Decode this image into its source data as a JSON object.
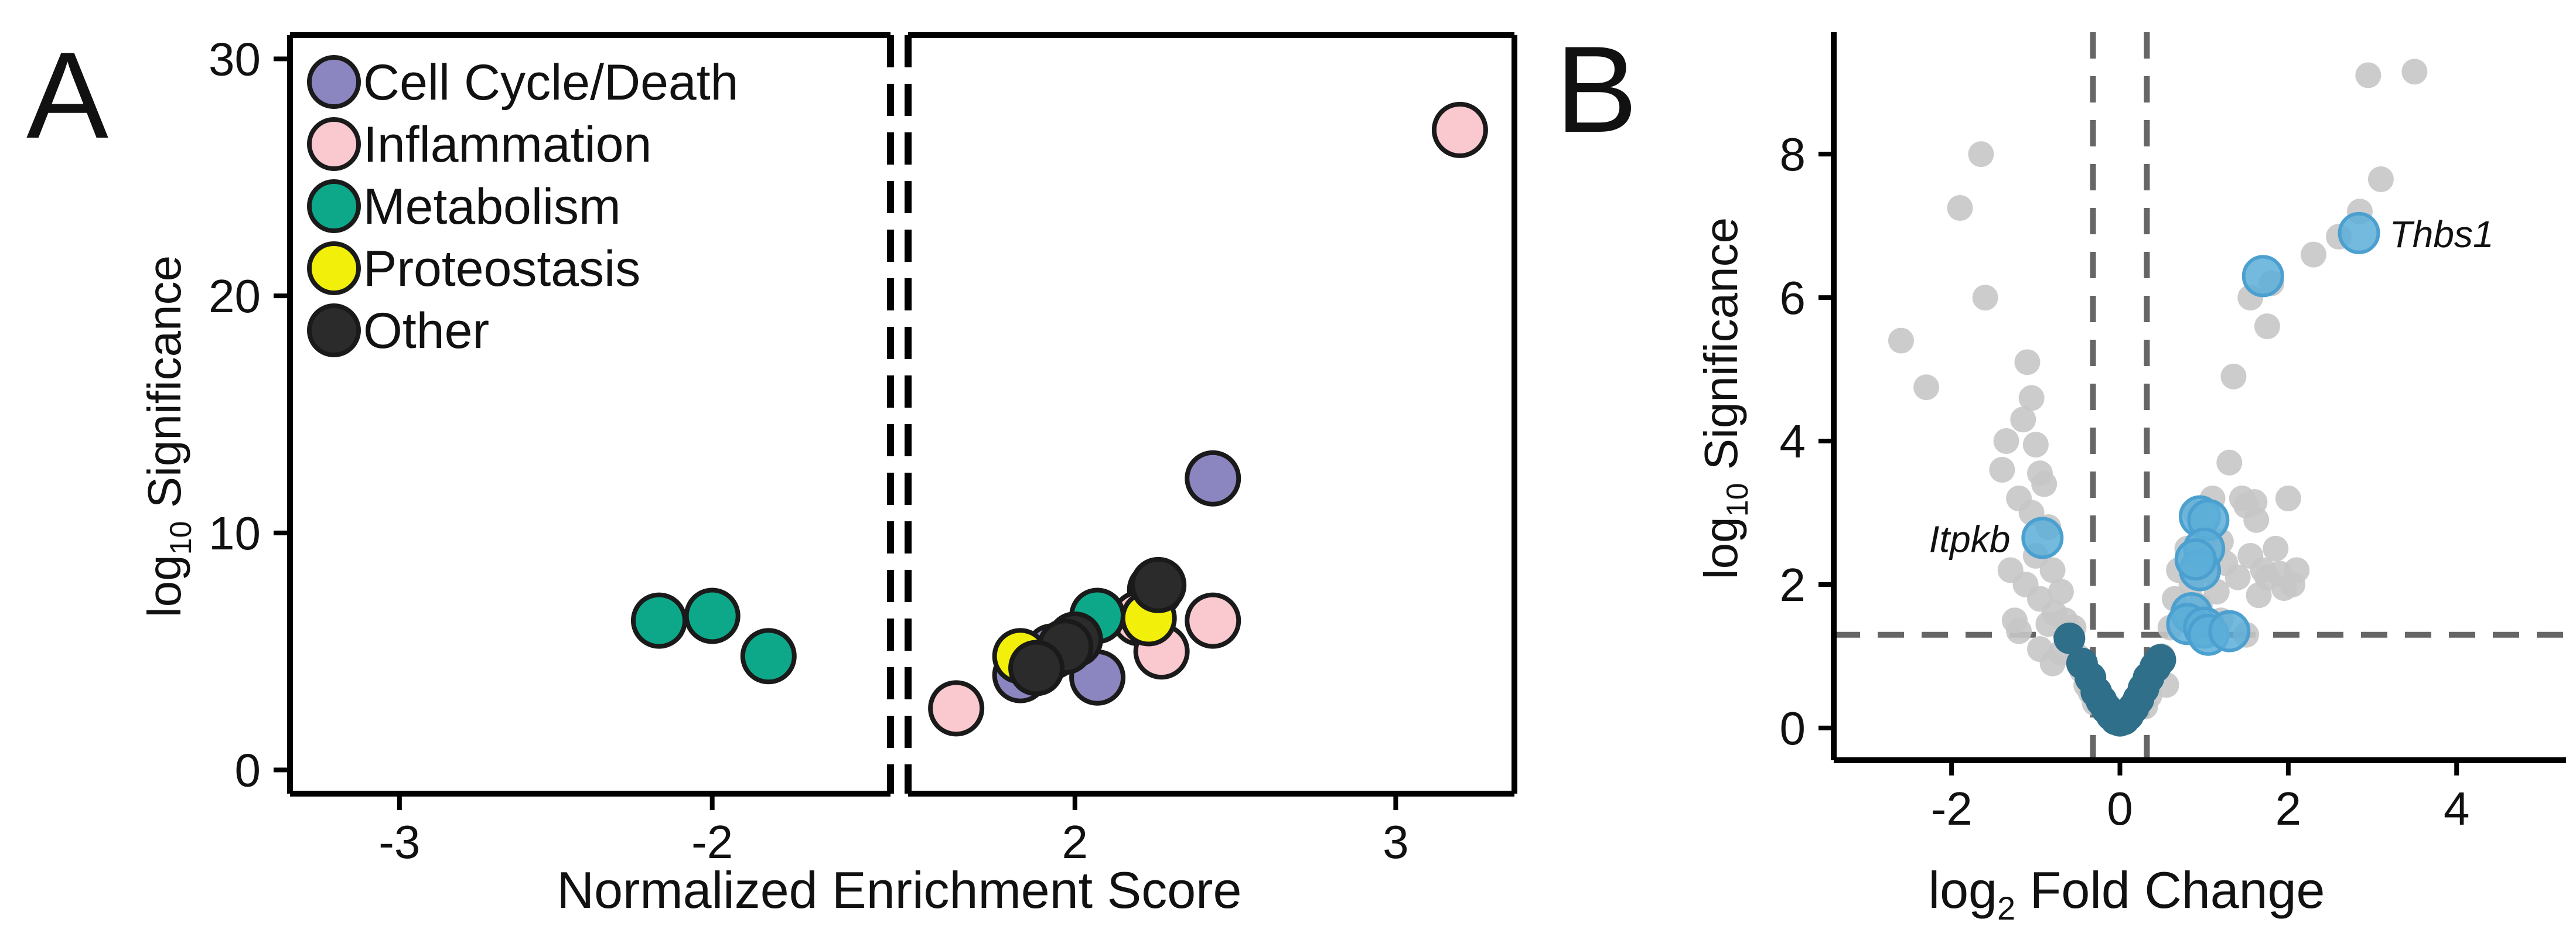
{
  "panels": {
    "a": {
      "letter": "A"
    },
    "b": {
      "letter": "B"
    }
  },
  "chart_data": [
    {
      "panel": "A",
      "type": "scatter",
      "xlabel": "Normalized Enrichment Score",
      "ylabel": {
        "prefix": "log",
        "sub": "10",
        "suffix": " Significance"
      },
      "ylim": [
        -1,
        31
      ],
      "yticks": [
        0,
        10,
        20,
        30
      ],
      "ytick_labels": [
        "0",
        "10",
        "20",
        "30"
      ],
      "axis_break": true,
      "left_segment": {
        "xlim": [
          -3.35,
          -1.43
        ],
        "xticks": [
          -3,
          -2
        ],
        "xtick_labels": [
          "-3",
          "-2"
        ]
      },
      "right_segment": {
        "xlim": [
          1.48,
          3.37
        ],
        "xticks": [
          2,
          3
        ],
        "xtick_labels": [
          "2",
          "3"
        ]
      },
      "grid": false,
      "legend": {
        "position": "top-left"
      },
      "series": [
        {
          "name": "Cell Cycle/Death",
          "color": "#8B86C0",
          "points": [
            [
              2.43,
              12.3
            ],
            [
              2.25,
              7.6
            ],
            [
              1.93,
              5.0
            ],
            [
              1.87,
              4.5
            ],
            [
              1.83,
              4.0
            ],
            [
              2.07,
              3.9
            ]
          ]
        },
        {
          "name": "Inflammation",
          "color": "#F9C9CF",
          "points": [
            [
              3.2,
              27.0
            ],
            [
              2.43,
              6.3
            ],
            [
              2.2,
              6.4
            ],
            [
              2.27,
              5.0
            ],
            [
              1.63,
              2.6
            ]
          ]
        },
        {
          "name": "Metabolism",
          "color": "#0DA88A",
          "points": [
            [
              -2.17,
              6.3
            ],
            [
              -2.0,
              6.5
            ],
            [
              -1.82,
              4.8
            ],
            [
              2.07,
              6.5
            ]
          ]
        },
        {
          "name": "Proteostasis",
          "color": "#F2F00A",
          "points": [
            [
              2.23,
              6.4
            ],
            [
              1.83,
              4.8
            ]
          ]
        },
        {
          "name": "Other",
          "color": "#2B2B2B",
          "points": [
            [
              2.26,
              7.8
            ],
            [
              2.0,
              5.5
            ],
            [
              1.97,
              5.2
            ],
            [
              1.88,
              4.3
            ]
          ]
        }
      ]
    },
    {
      "panel": "B",
      "type": "scatter",
      "xlabel": {
        "prefix": "log",
        "sub": "2",
        "suffix": " Fold Change"
      },
      "ylabel": {
        "prefix": "log",
        "sub": "10",
        "suffix": " Significance"
      },
      "xlim": [
        -3.4,
        5.3
      ],
      "ylim": [
        -0.45,
        9.7
      ],
      "xticks": [
        -2,
        0,
        2,
        4
      ],
      "xtick_labels": [
        "-2",
        "0",
        "2",
        "4"
      ],
      "yticks": [
        0,
        2,
        4,
        6,
        8
      ],
      "ytick_labels": [
        "0",
        "2",
        "4",
        "6",
        "8"
      ],
      "grid": false,
      "thresholds": {
        "vertical": [
          -0.32,
          0.32
        ],
        "horizontal": 1.3
      },
      "annotations": [
        {
          "text": "Thbs1",
          "x": 2.82,
          "y": 6.9
        },
        {
          "text": "Itpkb",
          "x": -0.92,
          "y": 2.65
        }
      ],
      "series": [
        {
          "color": "#C6C6C6",
          "points": [
            [
              -2.6,
              5.4
            ],
            [
              -2.3,
              4.75
            ],
            [
              -1.9,
              7.25
            ],
            [
              -1.65,
              8.0
            ],
            [
              -1.6,
              6.0
            ],
            [
              -1.4,
              3.6
            ],
            [
              -1.35,
              4.0
            ],
            [
              -1.3,
              2.2
            ],
            [
              -1.25,
              1.5
            ],
            [
              -1.2,
              1.35
            ],
            [
              -1.2,
              3.2
            ],
            [
              -1.15,
              4.3
            ],
            [
              -1.12,
              2.0
            ],
            [
              -1.1,
              5.1
            ],
            [
              -1.05,
              4.6
            ],
            [
              -1.05,
              3.0
            ],
            [
              -1.0,
              3.95
            ],
            [
              -1.0,
              2.4
            ],
            [
              -0.95,
              3.55
            ],
            [
              -0.95,
              1.8
            ],
            [
              -0.9,
              3.4
            ],
            [
              -0.85,
              2.8
            ],
            [
              -0.85,
              1.45
            ],
            [
              -0.8,
              2.2
            ],
            [
              -0.78,
              1.6
            ],
            [
              -0.7,
              1.9
            ],
            [
              -0.65,
              1.5
            ],
            [
              -0.6,
              1.35
            ],
            [
              -0.55,
              1.4
            ],
            [
              -0.5,
              1.0
            ],
            [
              -0.45,
              0.8
            ],
            [
              -0.4,
              0.6
            ],
            [
              -0.35,
              0.5
            ],
            [
              -0.3,
              0.35
            ],
            [
              -0.95,
              1.1
            ],
            [
              -0.8,
              0.9
            ],
            [
              -0.7,
              1.05
            ],
            [
              0.3,
              0.3
            ],
            [
              0.35,
              0.45
            ],
            [
              0.45,
              0.8
            ],
            [
              0.5,
              1.0
            ],
            [
              0.6,
              1.4
            ],
            [
              0.65,
              1.8
            ],
            [
              0.7,
              2.2
            ],
            [
              0.75,
              1.6
            ],
            [
              0.8,
              2.5
            ],
            [
              0.85,
              2.0
            ],
            [
              0.9,
              3.0
            ],
            [
              0.95,
              1.7
            ],
            [
              1.0,
              2.65
            ],
            [
              1.05,
              2.2
            ],
            [
              1.1,
              3.2
            ],
            [
              1.15,
              1.9
            ],
            [
              1.2,
              2.6
            ],
            [
              1.25,
              2.3
            ],
            [
              1.3,
              3.7
            ],
            [
              1.35,
              4.9
            ],
            [
              1.4,
              2.1
            ],
            [
              1.45,
              3.2
            ],
            [
              1.5,
              3.1
            ],
            [
              1.55,
              2.4
            ],
            [
              1.6,
              3.15
            ],
            [
              1.62,
              2.9
            ],
            [
              1.65,
              1.85
            ],
            [
              1.7,
              2.2
            ],
            [
              1.75,
              5.6
            ],
            [
              1.75,
              2.1
            ],
            [
              1.8,
              6.2
            ],
            [
              1.85,
              2.5
            ],
            [
              1.9,
              2.15
            ],
            [
              1.95,
              1.95
            ],
            [
              2.05,
              2.0
            ],
            [
              2.0,
              3.2
            ],
            [
              2.1,
              2.2
            ],
            [
              1.55,
              6.0
            ],
            [
              2.3,
              6.6
            ],
            [
              2.6,
              6.85
            ],
            [
              2.85,
              7.2
            ],
            [
              2.95,
              9.1
            ],
            [
              3.1,
              7.65
            ],
            [
              3.5,
              9.15
            ],
            [
              1.5,
              1.3
            ],
            [
              1.2,
              1.5
            ],
            [
              0.55,
              0.6
            ]
          ]
        },
        {
          "color": "#2F6F8A",
          "points": [
            [
              -0.6,
              1.25
            ],
            [
              -0.45,
              0.9
            ],
            [
              -0.35,
              0.7
            ],
            [
              -0.28,
              0.5
            ],
            [
              -0.22,
              0.38
            ],
            [
              -0.16,
              0.27
            ],
            [
              -0.1,
              0.18
            ],
            [
              -0.05,
              0.12
            ],
            [
              0.0,
              0.1
            ],
            [
              0.05,
              0.12
            ],
            [
              0.1,
              0.18
            ],
            [
              0.16,
              0.28
            ],
            [
              0.22,
              0.4
            ],
            [
              0.28,
              0.55
            ],
            [
              0.34,
              0.7
            ],
            [
              0.42,
              0.85
            ],
            [
              0.48,
              0.95
            ]
          ]
        },
        {
          "color": "#5AAED8",
          "points": [
            [
              2.84,
              6.9
            ],
            [
              1.7,
              6.3
            ],
            [
              0.95,
              2.95
            ],
            [
              1.05,
              2.9
            ],
            [
              1.0,
              2.5
            ],
            [
              0.95,
              2.2
            ],
            [
              0.9,
              2.35
            ],
            [
              0.85,
              1.6
            ],
            [
              0.8,
              1.45
            ],
            [
              1.0,
              1.4
            ],
            [
              1.05,
              1.3
            ],
            [
              1.3,
              1.35
            ],
            [
              -0.92,
              2.65
            ]
          ]
        }
      ]
    }
  ]
}
